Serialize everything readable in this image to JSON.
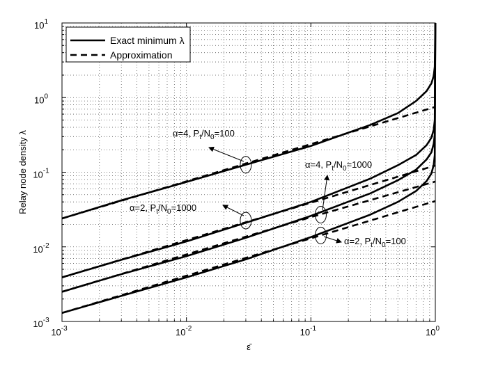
{
  "chart_data": {
    "type": "line",
    "title": "",
    "xlabel": "ε̄",
    "ylabel": "Relay node density λ",
    "xscale": "log",
    "yscale": "log",
    "xlim": [
      0.001,
      1
    ],
    "ylim": [
      0.001,
      10
    ],
    "grid": true,
    "legend_position": "top-left",
    "x_ticks": [
      {
        "base": "10",
        "exp": "-3",
        "value": 0.001
      },
      {
        "base": "10",
        "exp": "-2",
        "value": 0.01
      },
      {
        "base": "10",
        "exp": "-1",
        "value": 0.1
      },
      {
        "base": "10",
        "exp": "0",
        "value": 1
      }
    ],
    "y_ticks": [
      {
        "base": "10",
        "exp": "-3",
        "value": 0.001
      },
      {
        "base": "10",
        "exp": "-2",
        "value": 0.01
      },
      {
        "base": "10",
        "exp": "-1",
        "value": 0.1
      },
      {
        "base": "10",
        "exp": "0",
        "value": 1
      },
      {
        "base": "10",
        "exp": "1",
        "value": 10
      }
    ],
    "legend": [
      {
        "label": "Exact minimum λ",
        "style": "solid"
      },
      {
        "label": "Approximation",
        "style": "dashed"
      }
    ],
    "series": [
      {
        "group": "α=4, Pt/N0=100",
        "kind": "exact",
        "x": [
          0.001,
          0.003,
          0.01,
          0.03,
          0.1,
          0.3,
          0.5,
          0.7,
          0.85,
          0.93,
          0.97,
          0.99,
          1.0
        ],
        "y": [
          0.024,
          0.042,
          0.074,
          0.126,
          0.225,
          0.43,
          0.62,
          0.9,
          1.22,
          1.55,
          1.95,
          2.6,
          10
        ]
      },
      {
        "group": "α=4, Pt/N0=100",
        "kind": "approximation",
        "x": [
          0.001,
          0.01,
          0.1,
          1.0
        ],
        "y": [
          0.024,
          0.0755,
          0.238,
          0.75
        ]
      },
      {
        "group": "α=4, Pt/N0=1000",
        "kind": "exact",
        "x": [
          0.001,
          0.003,
          0.01,
          0.03,
          0.1,
          0.3,
          0.5,
          0.7,
          0.85,
          0.93,
          0.97,
          0.99,
          1.0
        ],
        "y": [
          0.0039,
          0.0067,
          0.0118,
          0.021,
          0.04,
          0.082,
          0.124,
          0.17,
          0.23,
          0.29,
          0.37,
          0.5,
          10
        ]
      },
      {
        "group": "α=4, Pt/N0=1000",
        "kind": "approximation",
        "x": [
          0.001,
          0.01,
          0.1,
          1.0
        ],
        "y": [
          0.0039,
          0.0123,
          0.039,
          0.123
        ]
      },
      {
        "group": "α=2, Pt/N0=1000",
        "kind": "exact",
        "x": [
          0.001,
          0.003,
          0.01,
          0.03,
          0.1,
          0.3,
          0.5,
          0.7,
          0.85,
          0.93,
          0.97,
          0.99,
          1.0
        ],
        "y": [
          0.0025,
          0.0043,
          0.0075,
          0.0132,
          0.026,
          0.052,
          0.078,
          0.108,
          0.148,
          0.185,
          0.24,
          0.32,
          10
        ]
      },
      {
        "group": "α=2, Pt/N0=1000",
        "kind": "approximation",
        "x": [
          0.001,
          0.01,
          0.1,
          1.0
        ],
        "y": [
          0.0025,
          0.0079,
          0.025,
          0.075
        ]
      },
      {
        "group": "α=2, Pt/N0=100",
        "kind": "exact",
        "x": [
          0.001,
          0.003,
          0.01,
          0.03,
          0.1,
          0.3,
          0.5,
          0.7,
          0.85,
          0.93,
          0.97,
          0.99,
          1.0
        ],
        "y": [
          0.0013,
          0.0022,
          0.0039,
          0.0068,
          0.0135,
          0.027,
          0.04,
          0.056,
          0.076,
          0.096,
          0.125,
          0.17,
          10
        ]
      },
      {
        "group": "α=2, Pt/N0=100",
        "kind": "approximation",
        "x": [
          0.001,
          0.01,
          0.1,
          1.0
        ],
        "y": [
          0.0013,
          0.0041,
          0.013,
          0.041
        ]
      }
    ],
    "annotations": [
      {
        "text": {
          "greek": "α",
          "mid": "=4, P",
          "sub1": "t",
          "mid2": "/N",
          "sub2": "0",
          "tail": "=100"
        },
        "ellipse": {
          "x": 0.03,
          "y": 0.126
        },
        "label_anchor": {
          "x": 0.0042,
          "y": 0.31
        }
      },
      {
        "text": {
          "greek": "α",
          "mid": "=4, P",
          "sub1": "t",
          "mid2": "/N",
          "sub2": "0",
          "tail": "=1000"
        },
        "ellipse": {
          "x": 0.12,
          "y": 0.027
        },
        "label_anchor": {
          "x": 0.21,
          "y": 0.123
        }
      },
      {
        "text": {
          "greek": "α",
          "mid": "=2, P",
          "sub1": "t",
          "mid2": "/N",
          "sub2": "0",
          "tail": "=1000"
        },
        "ellipse": {
          "x": 0.03,
          "y": 0.0225
        },
        "label_anchor": {
          "x": 0.0047,
          "y": 0.044
        }
      },
      {
        "text": {
          "greek": "α",
          "mid": "=2, P",
          "sub1": "t",
          "mid2": "/N",
          "sub2": "0",
          "tail": "=100"
        },
        "ellipse": {
          "x": 0.12,
          "y": 0.0142
        },
        "label_anchor": {
          "x": 0.26,
          "y": 0.0078
        }
      }
    ]
  }
}
